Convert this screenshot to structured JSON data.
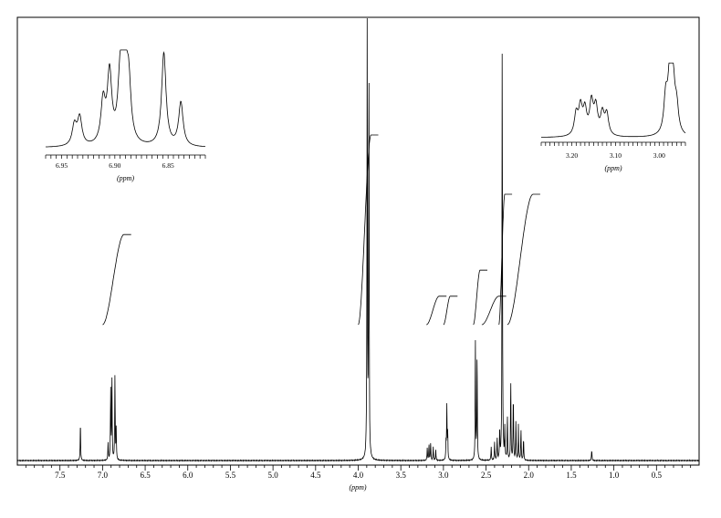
{
  "chart_data": {
    "type": "line",
    "title": "",
    "xlabel": "(ppm)",
    "ylabel": "",
    "x_reversed": true,
    "xlim": [
      8.0,
      0.0
    ],
    "grid": false,
    "x_ticks": [
      7.5,
      7.0,
      6.5,
      6.0,
      5.5,
      5.0,
      4.5,
      4.0,
      3.5,
      3.0,
      2.5,
      2.0,
      1.5,
      1.0,
      0.5
    ],
    "x_tick_labels": [
      "7.5",
      "7.0",
      "6.5",
      "6.0",
      "5.5",
      "5.0",
      "4.5",
      "4.0",
      "3.5",
      "3.0",
      "2.5",
      "2.0",
      "1.5",
      "1.0",
      "0.5"
    ],
    "peaks": [
      {
        "ppm": 7.26,
        "height": 0.09
      },
      {
        "ppm": 6.935,
        "height": 0.04
      },
      {
        "ppm": 6.905,
        "height": 0.16
      },
      {
        "ppm": 6.89,
        "height": 0.19
      },
      {
        "ppm": 6.855,
        "height": 0.19
      },
      {
        "ppm": 6.84,
        "height": 0.07
      },
      {
        "ppm": 3.895,
        "height": 1.0
      },
      {
        "ppm": 3.875,
        "height": 0.94
      },
      {
        "ppm": 3.19,
        "height": 0.03
      },
      {
        "ppm": 3.17,
        "height": 0.035
      },
      {
        "ppm": 3.15,
        "height": 0.04
      },
      {
        "ppm": 3.12,
        "height": 0.03
      },
      {
        "ppm": 3.09,
        "height": 0.025
      },
      {
        "ppm": 2.97,
        "height": 0.04
      },
      {
        "ppm": 2.96,
        "height": 0.12
      },
      {
        "ppm": 2.95,
        "height": 0.06
      },
      {
        "ppm": 2.625,
        "height": 0.27
      },
      {
        "ppm": 2.605,
        "height": 0.25
      },
      {
        "ppm": 2.44,
        "height": 0.03
      },
      {
        "ppm": 2.4,
        "height": 0.04
      },
      {
        "ppm": 2.37,
        "height": 0.05
      },
      {
        "ppm": 2.34,
        "height": 0.07
      },
      {
        "ppm": 2.31,
        "height": 0.97
      },
      {
        "ppm": 2.28,
        "height": 0.07
      },
      {
        "ppm": 2.25,
        "height": 0.1
      },
      {
        "ppm": 2.21,
        "height": 0.18
      },
      {
        "ppm": 2.18,
        "height": 0.15
      },
      {
        "ppm": 2.15,
        "height": 0.09
      },
      {
        "ppm": 2.12,
        "height": 0.08
      },
      {
        "ppm": 2.09,
        "height": 0.07
      },
      {
        "ppm": 2.06,
        "height": 0.05
      },
      {
        "ppm": 1.26,
        "height": 0.025
      }
    ],
    "integrals": [
      {
        "from": 7.0,
        "to": 6.75,
        "height": 0.38
      },
      {
        "from": 4.0,
        "to": 3.85,
        "height": 0.8
      },
      {
        "from": 3.2,
        "to": 3.05,
        "height": 0.12
      },
      {
        "from": 3.0,
        "to": 2.92,
        "height": 0.12
      },
      {
        "from": 2.65,
        "to": 2.57,
        "height": 0.23
      },
      {
        "from": 2.55,
        "to": 2.35,
        "height": 0.12
      },
      {
        "from": 2.35,
        "to": 2.28,
        "height": 0.55
      },
      {
        "from": 2.25,
        "to": 1.95,
        "height": 0.55
      }
    ],
    "insets": [
      {
        "xlabel": "(ppm)",
        "xlim": [
          6.965,
          6.815
        ],
        "x_ticks": [
          6.95,
          6.9,
          6.85
        ],
        "x_tick_labels": [
          "6.95",
          "6.90",
          "6.85"
        ],
        "peaks": [
          {
            "ppm": 6.938,
            "height": 0.22
          },
          {
            "ppm": 6.933,
            "height": 0.3
          },
          {
            "ppm": 6.911,
            "height": 0.45
          },
          {
            "ppm": 6.905,
            "height": 0.75
          },
          {
            "ppm": 6.895,
            "height": 0.65
          },
          {
            "ppm": 6.891,
            "height": 0.98
          },
          {
            "ppm": 6.887,
            "height": 0.6
          },
          {
            "ppm": 6.854,
            "height": 1.0
          },
          {
            "ppm": 6.838,
            "height": 0.47
          }
        ]
      },
      {
        "xlabel": "(ppm)",
        "xlim": [
          3.27,
          2.94
        ],
        "x_ticks": [
          3.2,
          3.1,
          3.0
        ],
        "x_tick_labels": [
          "3.20",
          "3.10",
          "3.00"
        ],
        "peaks": [
          {
            "ppm": 3.19,
            "height": 0.3
          },
          {
            "ppm": 3.18,
            "height": 0.38
          },
          {
            "ppm": 3.17,
            "height": 0.34
          },
          {
            "ppm": 3.155,
            "height": 0.45
          },
          {
            "ppm": 3.145,
            "height": 0.38
          },
          {
            "ppm": 3.13,
            "height": 0.3
          },
          {
            "ppm": 3.12,
            "height": 0.3
          },
          {
            "ppm": 2.985,
            "height": 0.5
          },
          {
            "ppm": 2.975,
            "height": 1.0
          },
          {
            "ppm": 2.968,
            "height": 0.6
          },
          {
            "ppm": 2.96,
            "height": 0.35
          }
        ]
      }
    ]
  }
}
